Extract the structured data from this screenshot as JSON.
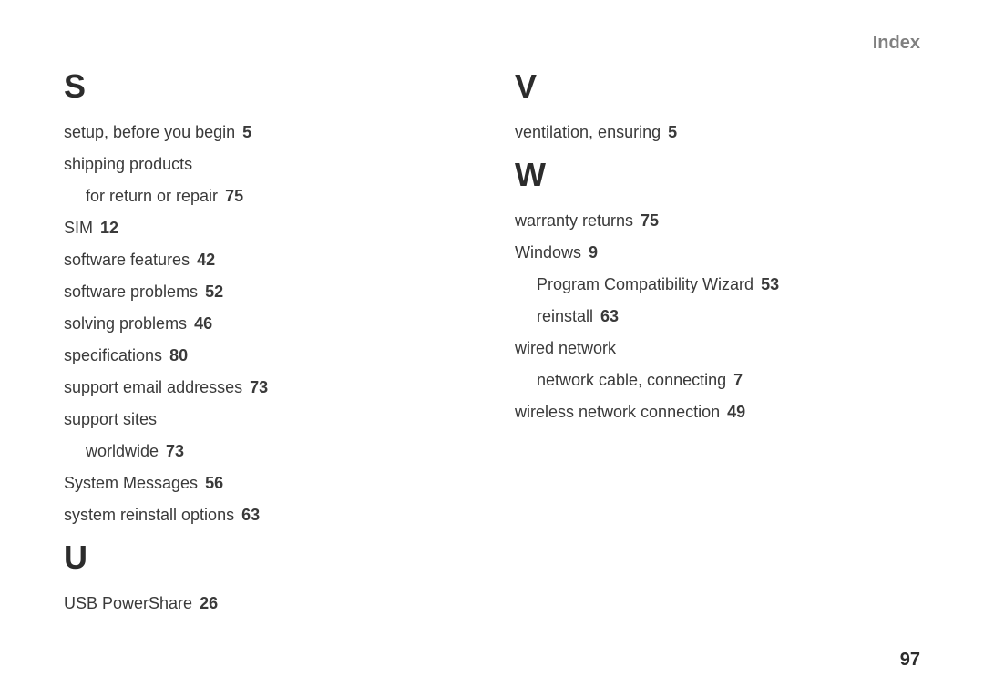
{
  "header": {
    "title": "Index"
  },
  "left_column": {
    "sections": [
      {
        "letter": "S",
        "entries": [
          {
            "text": "setup, before you begin",
            "page": "5",
            "indent": 0
          },
          {
            "text": "shipping products",
            "page": "",
            "indent": 0
          },
          {
            "text": "for return or repair",
            "page": "75",
            "indent": 1
          },
          {
            "text": "SIM",
            "page": "12",
            "indent": 0
          },
          {
            "text": "software features",
            "page": "42",
            "indent": 0
          },
          {
            "text": "software problems",
            "page": "52",
            "indent": 0
          },
          {
            "text": "solving problems",
            "page": "46",
            "indent": 0
          },
          {
            "text": "specifications",
            "page": "80",
            "indent": 0
          },
          {
            "text": "support email addresses",
            "page": "73",
            "indent": 0
          },
          {
            "text": "support sites",
            "page": "",
            "indent": 0
          },
          {
            "text": "worldwide",
            "page": "73",
            "indent": 1
          },
          {
            "text": "System Messages",
            "page": "56",
            "indent": 0
          },
          {
            "text": "system reinstall options",
            "page": "63",
            "indent": 0
          }
        ]
      },
      {
        "letter": "U",
        "entries": [
          {
            "text": "USB PowerShare",
            "page": "26",
            "indent": 0
          }
        ]
      }
    ]
  },
  "right_column": {
    "sections": [
      {
        "letter": "V",
        "entries": [
          {
            "text": "ventilation, ensuring",
            "page": "5",
            "indent": 0
          }
        ]
      },
      {
        "letter": "W",
        "entries": [
          {
            "text": "warranty returns",
            "page": "75",
            "indent": 0
          },
          {
            "text": "Windows",
            "page": "9",
            "indent": 0
          },
          {
            "text": "Program Compatibility Wizard",
            "page": "53",
            "indent": 1
          },
          {
            "text": "reinstall",
            "page": "63",
            "indent": 1
          },
          {
            "text": "wired network",
            "page": "",
            "indent": 0
          },
          {
            "text": "network cable, connecting",
            "page": "7",
            "indent": 1
          },
          {
            "text": "wireless network connection",
            "page": "49",
            "indent": 0
          }
        ]
      }
    ]
  },
  "page_number": "97",
  "colors": {
    "background": "#ffffff",
    "header_color": "#808080",
    "text_color": "#3a3a3a",
    "letter_color": "#2c2c2c",
    "page_color": "#3a3a3a"
  }
}
